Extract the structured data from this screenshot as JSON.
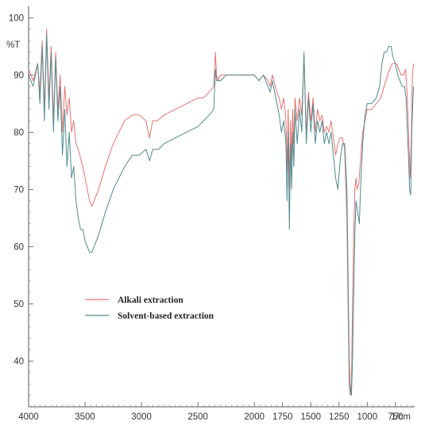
{
  "chart_data": {
    "type": "line",
    "ylabel": "%T",
    "xlabel": "1/cm",
    "xlim": [
      4000,
      580
    ],
    "ylim": [
      32,
      102
    ],
    "x_ticks": [
      4000,
      3500,
      3000,
      2500,
      2000,
      1750,
      1500,
      1250,
      1000,
      750
    ],
    "y_ticks": [
      40,
      50,
      60,
      70,
      80,
      90,
      100
    ],
    "grid": false,
    "legend": "middle-left",
    "series": [
      {
        "name": "Alkali extraction",
        "color": "#e8736f",
        "points": [
          [
            4000,
            91
          ],
          [
            3960,
            89
          ],
          [
            3920,
            92
          ],
          [
            3900,
            87
          ],
          [
            3880,
            96
          ],
          [
            3860,
            84
          ],
          [
            3840,
            98
          ],
          [
            3820,
            86
          ],
          [
            3800,
            95
          ],
          [
            3780,
            82
          ],
          [
            3760,
            94
          ],
          [
            3740,
            84
          ],
          [
            3720,
            90
          ],
          [
            3700,
            80
          ],
          [
            3680,
            88
          ],
          [
            3660,
            83
          ],
          [
            3640,
            86
          ],
          [
            3620,
            80
          ],
          [
            3600,
            82
          ],
          [
            3580,
            78
          ],
          [
            3560,
            77
          ],
          [
            3520,
            74
          ],
          [
            3500,
            72
          ],
          [
            3460,
            68
          ],
          [
            3440,
            67
          ],
          [
            3420,
            68
          ],
          [
            3380,
            70
          ],
          [
            3320,
            74
          ],
          [
            3250,
            78
          ],
          [
            3150,
            82
          ],
          [
            3080,
            83
          ],
          [
            3020,
            83
          ],
          [
            2960,
            82
          ],
          [
            2930,
            79
          ],
          [
            2900,
            82
          ],
          [
            2860,
            82
          ],
          [
            2800,
            83
          ],
          [
            2700,
            84
          ],
          [
            2600,
            85
          ],
          [
            2500,
            86
          ],
          [
            2450,
            86
          ],
          [
            2400,
            87
          ],
          [
            2360,
            88
          ],
          [
            2345,
            94
          ],
          [
            2335,
            90
          ],
          [
            2320,
            89
          ],
          [
            2300,
            90
          ],
          [
            2250,
            90
          ],
          [
            2200,
            90
          ],
          [
            2100,
            90
          ],
          [
            2050,
            90
          ],
          [
            2000,
            90
          ],
          [
            1960,
            89
          ],
          [
            1920,
            90
          ],
          [
            1880,
            89
          ],
          [
            1860,
            88
          ],
          [
            1840,
            90
          ],
          [
            1800,
            87
          ],
          [
            1780,
            86
          ],
          [
            1760,
            84
          ],
          [
            1740,
            86
          ],
          [
            1720,
            82
          ],
          [
            1710,
            73
          ],
          [
            1700,
            84
          ],
          [
            1690,
            70
          ],
          [
            1680,
            82
          ],
          [
            1670,
            75
          ],
          [
            1660,
            84
          ],
          [
            1650,
            78
          ],
          [
            1640,
            86
          ],
          [
            1620,
            82
          ],
          [
            1600,
            86
          ],
          [
            1580,
            83
          ],
          [
            1560,
            93
          ],
          [
            1540,
            80
          ],
          [
            1520,
            87
          ],
          [
            1500,
            82
          ],
          [
            1480,
            86
          ],
          [
            1460,
            80
          ],
          [
            1440,
            84
          ],
          [
            1420,
            82
          ],
          [
            1400,
            83
          ],
          [
            1380,
            80
          ],
          [
            1360,
            81
          ],
          [
            1340,
            80
          ],
          [
            1320,
            82
          ],
          [
            1300,
            79
          ],
          [
            1280,
            76
          ],
          [
            1260,
            78
          ],
          [
            1240,
            79
          ],
          [
            1220,
            79
          ],
          [
            1200,
            77
          ],
          [
            1180,
            65
          ],
          [
            1170,
            50
          ],
          [
            1160,
            36
          ],
          [
            1150,
            34
          ],
          [
            1140,
            36
          ],
          [
            1130,
            50
          ],
          [
            1120,
            62
          ],
          [
            1110,
            70
          ],
          [
            1100,
            72
          ],
          [
            1090,
            70
          ],
          [
            1075,
            71
          ],
          [
            1060,
            75
          ],
          [
            1040,
            80
          ],
          [
            1020,
            82
          ],
          [
            1000,
            84
          ],
          [
            960,
            84
          ],
          [
            920,
            85
          ],
          [
            880,
            86
          ],
          [
            850,
            88
          ],
          [
            820,
            90
          ],
          [
            800,
            91
          ],
          [
            780,
            92
          ],
          [
            760,
            92
          ],
          [
            740,
            92
          ],
          [
            720,
            91
          ],
          [
            700,
            90
          ],
          [
            680,
            90
          ],
          [
            660,
            91
          ],
          [
            645,
            86
          ],
          [
            630,
            78
          ],
          [
            620,
            72
          ],
          [
            610,
            78
          ],
          [
            600,
            90
          ],
          [
            590,
            92
          ]
        ]
      },
      {
        "name": "Solvent-based extraction",
        "color": "#4e8b92",
        "points": [
          [
            4000,
            90
          ],
          [
            3960,
            88
          ],
          [
            3920,
            92
          ],
          [
            3900,
            85
          ],
          [
            3880,
            95
          ],
          [
            3860,
            82
          ],
          [
            3840,
            97
          ],
          [
            3820,
            84
          ],
          [
            3800,
            94
          ],
          [
            3780,
            80
          ],
          [
            3760,
            93
          ],
          [
            3740,
            82
          ],
          [
            3720,
            88
          ],
          [
            3700,
            76
          ],
          [
            3680,
            84
          ],
          [
            3660,
            74
          ],
          [
            3640,
            80
          ],
          [
            3620,
            72
          ],
          [
            3600,
            74
          ],
          [
            3580,
            68
          ],
          [
            3560,
            65
          ],
          [
            3540,
            63
          ],
          [
            3520,
            63
          ],
          [
            3500,
            61
          ],
          [
            3480,
            60
          ],
          [
            3460,
            59
          ],
          [
            3440,
            59
          ],
          [
            3420,
            60
          ],
          [
            3380,
            62
          ],
          [
            3320,
            66
          ],
          [
            3250,
            70
          ],
          [
            3150,
            74
          ],
          [
            3080,
            76
          ],
          [
            3020,
            76
          ],
          [
            2960,
            77
          ],
          [
            2930,
            75
          ],
          [
            2900,
            77
          ],
          [
            2850,
            77
          ],
          [
            2800,
            78
          ],
          [
            2700,
            79
          ],
          [
            2600,
            80
          ],
          [
            2500,
            81
          ],
          [
            2450,
            82
          ],
          [
            2400,
            83
          ],
          [
            2360,
            84
          ],
          [
            2345,
            91
          ],
          [
            2335,
            89
          ],
          [
            2320,
            89
          ],
          [
            2300,
            89
          ],
          [
            2250,
            90
          ],
          [
            2200,
            90
          ],
          [
            2100,
            90
          ],
          [
            2050,
            90
          ],
          [
            2000,
            90
          ],
          [
            1960,
            89
          ],
          [
            1920,
            90
          ],
          [
            1880,
            88
          ],
          [
            1860,
            87
          ],
          [
            1840,
            89
          ],
          [
            1800,
            85
          ],
          [
            1780,
            83
          ],
          [
            1760,
            80
          ],
          [
            1740,
            82
          ],
          [
            1720,
            78
          ],
          [
            1710,
            68
          ],
          [
            1700,
            80
          ],
          [
            1690,
            63
          ],
          [
            1680,
            78
          ],
          [
            1670,
            70
          ],
          [
            1660,
            80
          ],
          [
            1650,
            74
          ],
          [
            1640,
            84
          ],
          [
            1620,
            78
          ],
          [
            1600,
            84
          ],
          [
            1580,
            80
          ],
          [
            1560,
            94
          ],
          [
            1540,
            78
          ],
          [
            1520,
            86
          ],
          [
            1500,
            80
          ],
          [
            1480,
            85
          ],
          [
            1460,
            78
          ],
          [
            1440,
            82
          ],
          [
            1420,
            80
          ],
          [
            1400,
            82
          ],
          [
            1380,
            78
          ],
          [
            1360,
            80
          ],
          [
            1340,
            78
          ],
          [
            1320,
            80
          ],
          [
            1300,
            76
          ],
          [
            1280,
            72
          ],
          [
            1260,
            70
          ],
          [
            1240,
            75
          ],
          [
            1220,
            78
          ],
          [
            1200,
            78
          ],
          [
            1180,
            70
          ],
          [
            1170,
            55
          ],
          [
            1160,
            40
          ],
          [
            1150,
            35
          ],
          [
            1140,
            34
          ],
          [
            1130,
            40
          ],
          [
            1120,
            52
          ],
          [
            1110,
            62
          ],
          [
            1100,
            68
          ],
          [
            1085,
            66
          ],
          [
            1070,
            64
          ],
          [
            1060,
            70
          ],
          [
            1040,
            78
          ],
          [
            1020,
            83
          ],
          [
            1000,
            85
          ],
          [
            960,
            85
          ],
          [
            920,
            86
          ],
          [
            890,
            88
          ],
          [
            870,
            92
          ],
          [
            850,
            94
          ],
          [
            830,
            94
          ],
          [
            810,
            95
          ],
          [
            790,
            95
          ],
          [
            770,
            93
          ],
          [
            750,
            92
          ],
          [
            730,
            90
          ],
          [
            710,
            89
          ],
          [
            690,
            88
          ],
          [
            670,
            88
          ],
          [
            655,
            86
          ],
          [
            645,
            80
          ],
          [
            635,
            76
          ],
          [
            625,
            70
          ],
          [
            615,
            69
          ],
          [
            605,
            80
          ],
          [
            595,
            86
          ],
          [
            590,
            88
          ]
        ]
      }
    ]
  }
}
